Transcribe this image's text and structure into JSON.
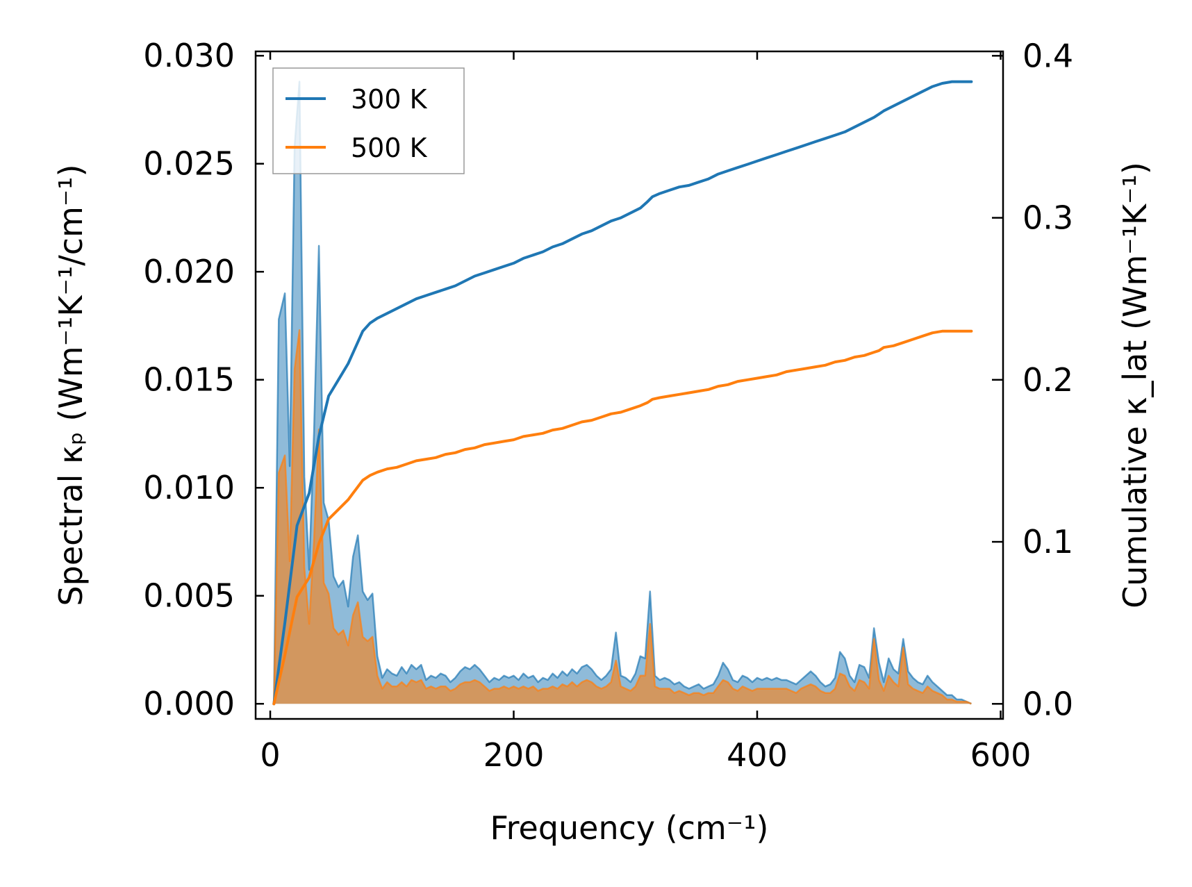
{
  "chart_data": {
    "type": "line",
    "title": "",
    "xlabel": "Frequency (cm⁻¹)",
    "ylabel_left": "Spectral κₚ (Wm⁻¹K⁻¹/cm⁻¹)",
    "ylabel_right": "Cumulative κ_lat (Wm⁻¹K⁻¹)",
    "xlim": [
      -12,
      602
    ],
    "ylim_left": [
      -0.0007,
      0.0302
    ],
    "ylim_right": [
      -0.0093,
      0.4027
    ],
    "x_ticks": [
      0,
      200,
      400,
      600
    ],
    "x_tick_labels": [
      "0",
      "200",
      "400",
      "600"
    ],
    "y_left_ticks": [
      0.0,
      0.005,
      0.01,
      0.015,
      0.02,
      0.025,
      0.03
    ],
    "y_left_tick_labels": [
      "0.000",
      "0.005",
      "0.010",
      "0.015",
      "0.020",
      "0.025",
      "0.030"
    ],
    "y_right_ticks": [
      0.0,
      0.1,
      0.2,
      0.3,
      0.4
    ],
    "y_right_tick_labels": [
      "0.0",
      "0.1",
      "0.2",
      "0.3",
      "0.4"
    ],
    "legend": {
      "location": "upper-left",
      "entries": [
        "300 K",
        "500 K"
      ]
    },
    "colors": {
      "300 K": "#1f77b4",
      "500 K": "#ff7f0e"
    },
    "spectral_x": [
      3,
      7,
      12,
      16,
      20,
      24,
      28,
      32,
      36,
      40,
      44,
      48,
      52,
      56,
      60,
      64,
      68,
      72,
      76,
      80,
      84,
      88,
      92,
      96,
      100,
      104,
      108,
      112,
      116,
      120,
      124,
      128,
      132,
      136,
      140,
      144,
      148,
      152,
      156,
      160,
      164,
      168,
      172,
      176,
      180,
      184,
      188,
      192,
      196,
      200,
      204,
      208,
      212,
      216,
      220,
      224,
      228,
      232,
      236,
      240,
      244,
      248,
      252,
      256,
      260,
      264,
      268,
      272,
      276,
      280,
      284,
      288,
      292,
      296,
      300,
      304,
      308,
      312,
      316,
      320,
      324,
      328,
      332,
      336,
      340,
      344,
      348,
      352,
      356,
      360,
      364,
      368,
      372,
      376,
      380,
      384,
      388,
      392,
      396,
      400,
      404,
      408,
      412,
      416,
      420,
      424,
      428,
      432,
      436,
      440,
      444,
      448,
      452,
      456,
      460,
      464,
      468,
      472,
      476,
      480,
      484,
      488,
      492,
      496,
      500,
      504,
      508,
      512,
      516,
      520,
      524,
      528,
      532,
      536,
      540,
      544,
      548,
      552,
      556,
      560,
      564,
      568,
      572,
      576
    ],
    "series": [
      {
        "name": "300 K",
        "spectral": [
          0.0,
          0.0178,
          0.019,
          0.011,
          0.0258,
          0.0288,
          0.0105,
          0.0062,
          0.0126,
          0.0212,
          0.0093,
          0.0085,
          0.0059,
          0.0054,
          0.0057,
          0.0045,
          0.0068,
          0.0078,
          0.0052,
          0.0048,
          0.0051,
          0.0022,
          0.0012,
          0.0016,
          0.0014,
          0.0013,
          0.0017,
          0.0014,
          0.0018,
          0.0016,
          0.0018,
          0.0011,
          0.0013,
          0.0012,
          0.0014,
          0.0013,
          0.001,
          0.0012,
          0.0015,
          0.0017,
          0.0016,
          0.0018,
          0.0016,
          0.0013,
          0.001,
          0.0012,
          0.0011,
          0.0013,
          0.0012,
          0.0013,
          0.0011,
          0.0014,
          0.0012,
          0.0013,
          0.001,
          0.0012,
          0.0011,
          0.0014,
          0.0012,
          0.0015,
          0.0013,
          0.0016,
          0.0014,
          0.0017,
          0.0018,
          0.0016,
          0.0013,
          0.0011,
          0.0013,
          0.0016,
          0.0033,
          0.0013,
          0.0012,
          0.001,
          0.0014,
          0.0022,
          0.0021,
          0.0052,
          0.0013,
          0.0011,
          0.0012,
          0.0011,
          0.0009,
          0.001,
          0.0008,
          0.0007,
          0.0008,
          0.0009,
          0.0007,
          0.0008,
          0.0009,
          0.0013,
          0.0019,
          0.0016,
          0.0011,
          0.001,
          0.0013,
          0.0012,
          0.001,
          0.0012,
          0.0011,
          0.0012,
          0.0011,
          0.0012,
          0.0011,
          0.0011,
          0.001,
          0.0009,
          0.0011,
          0.0013,
          0.0015,
          0.0013,
          0.001,
          0.0008,
          0.0009,
          0.0012,
          0.0024,
          0.0021,
          0.0013,
          0.001,
          0.0018,
          0.0017,
          0.0012,
          0.0035,
          0.0019,
          0.001,
          0.0021,
          0.0016,
          0.0014,
          0.003,
          0.0015,
          0.0012,
          0.001,
          0.0009,
          0.0013,
          0.001,
          0.0008,
          0.0006,
          0.0004,
          0.0004,
          0.0002,
          0.0002,
          0.0001,
          0.0
        ],
        "cumulative_x": [
          3,
          12,
          22,
          32,
          40,
          48,
          56,
          64,
          70,
          76,
          82,
          88,
          96,
          104,
          112,
          120,
          128,
          136,
          144,
          152,
          160,
          168,
          176,
          184,
          192,
          200,
          208,
          216,
          224,
          232,
          240,
          248,
          256,
          264,
          272,
          280,
          288,
          296,
          304,
          310,
          314,
          320,
          328,
          336,
          344,
          352,
          360,
          368,
          376,
          384,
          392,
          400,
          408,
          416,
          424,
          432,
          440,
          448,
          456,
          464,
          472,
          480,
          488,
          496,
          500,
          504,
          512,
          520,
          528,
          536,
          544,
          552,
          560,
          568,
          576
        ],
        "cumulative": [
          0.0,
          0.05,
          0.11,
          0.13,
          0.165,
          0.19,
          0.2,
          0.21,
          0.22,
          0.23,
          0.235,
          0.238,
          0.241,
          0.244,
          0.247,
          0.25,
          0.252,
          0.254,
          0.256,
          0.258,
          0.261,
          0.264,
          0.266,
          0.268,
          0.27,
          0.272,
          0.275,
          0.277,
          0.279,
          0.282,
          0.284,
          0.287,
          0.29,
          0.292,
          0.295,
          0.298,
          0.3,
          0.303,
          0.306,
          0.31,
          0.313,
          0.315,
          0.317,
          0.319,
          0.32,
          0.322,
          0.324,
          0.327,
          0.329,
          0.331,
          0.333,
          0.335,
          0.337,
          0.339,
          0.341,
          0.343,
          0.345,
          0.347,
          0.349,
          0.351,
          0.353,
          0.356,
          0.359,
          0.362,
          0.364,
          0.366,
          0.369,
          0.372,
          0.375,
          0.378,
          0.381,
          0.383,
          0.384,
          0.384,
          0.384
        ]
      },
      {
        "name": "500 K",
        "spectral": [
          0.0,
          0.0107,
          0.0115,
          0.0066,
          0.0155,
          0.0173,
          0.0063,
          0.0037,
          0.0076,
          0.0127,
          0.0056,
          0.0051,
          0.0035,
          0.0032,
          0.0034,
          0.0027,
          0.0041,
          0.0047,
          0.0031,
          0.0029,
          0.0031,
          0.0013,
          0.0007,
          0.001,
          0.0008,
          0.0008,
          0.001,
          0.0008,
          0.0011,
          0.001,
          0.0011,
          0.0007,
          0.0008,
          0.0007,
          0.0008,
          0.0008,
          0.0006,
          0.0007,
          0.0009,
          0.001,
          0.001,
          0.0011,
          0.001,
          0.0008,
          0.0006,
          0.0007,
          0.0007,
          0.0008,
          0.0007,
          0.0008,
          0.0007,
          0.0008,
          0.0007,
          0.0008,
          0.0006,
          0.0007,
          0.0007,
          0.0008,
          0.0007,
          0.0009,
          0.0008,
          0.001,
          0.0008,
          0.001,
          0.0011,
          0.001,
          0.0008,
          0.0007,
          0.0008,
          0.001,
          0.002,
          0.0008,
          0.0007,
          0.0006,
          0.0008,
          0.0013,
          0.0013,
          0.0037,
          0.0008,
          0.0007,
          0.0007,
          0.0007,
          0.0005,
          0.0006,
          0.0005,
          0.0004,
          0.0005,
          0.0005,
          0.0004,
          0.0005,
          0.0005,
          0.0008,
          0.0011,
          0.001,
          0.0007,
          0.0006,
          0.0008,
          0.0007,
          0.0006,
          0.0007,
          0.0007,
          0.0007,
          0.0007,
          0.0007,
          0.0007,
          0.0007,
          0.0006,
          0.0005,
          0.0007,
          0.0008,
          0.0009,
          0.0008,
          0.0006,
          0.0005,
          0.0005,
          0.0007,
          0.0014,
          0.0013,
          0.0008,
          0.0006,
          0.0011,
          0.001,
          0.0007,
          0.003,
          0.0011,
          0.0006,
          0.0013,
          0.001,
          0.0008,
          0.0026,
          0.0009,
          0.0007,
          0.0006,
          0.0005,
          0.0008,
          0.0006,
          0.0005,
          0.0004,
          0.0002,
          0.0002,
          0.0001,
          0.0001,
          0.0001,
          0.0
        ],
        "cumulative_x": [
          3,
          12,
          22,
          32,
          40,
          48,
          56,
          64,
          70,
          76,
          82,
          88,
          96,
          104,
          112,
          120,
          128,
          136,
          144,
          152,
          160,
          168,
          176,
          184,
          192,
          200,
          208,
          216,
          224,
          232,
          240,
          248,
          256,
          264,
          272,
          280,
          288,
          296,
          304,
          310,
          314,
          320,
          328,
          336,
          344,
          352,
          360,
          368,
          376,
          384,
          392,
          400,
          408,
          416,
          424,
          432,
          440,
          448,
          456,
          464,
          472,
          480,
          488,
          496,
          500,
          504,
          512,
          520,
          528,
          536,
          544,
          552,
          560,
          568,
          576
        ],
        "cumulative": [
          0.0,
          0.03,
          0.066,
          0.078,
          0.099,
          0.114,
          0.12,
          0.126,
          0.132,
          0.138,
          0.141,
          0.143,
          0.145,
          0.146,
          0.148,
          0.15,
          0.151,
          0.152,
          0.154,
          0.155,
          0.157,
          0.158,
          0.16,
          0.161,
          0.162,
          0.163,
          0.165,
          0.166,
          0.167,
          0.169,
          0.17,
          0.172,
          0.174,
          0.175,
          0.177,
          0.179,
          0.18,
          0.182,
          0.184,
          0.186,
          0.188,
          0.189,
          0.19,
          0.191,
          0.192,
          0.193,
          0.194,
          0.196,
          0.197,
          0.199,
          0.2,
          0.201,
          0.202,
          0.203,
          0.205,
          0.206,
          0.207,
          0.208,
          0.209,
          0.211,
          0.212,
          0.214,
          0.215,
          0.217,
          0.218,
          0.22,
          0.221,
          0.223,
          0.225,
          0.227,
          0.229,
          0.23,
          0.23,
          0.23,
          0.23
        ]
      }
    ]
  }
}
